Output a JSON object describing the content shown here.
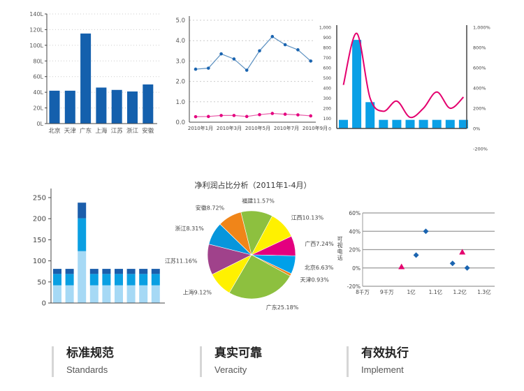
{
  "chart_data": [
    {
      "type": "bar",
      "categories": [
        "北京",
        "天津",
        "广东",
        "上海",
        "江苏",
        "浙江",
        "安徽"
      ],
      "values": [
        42,
        42,
        115,
        46,
        43,
        41,
        50
      ],
      "yticks": [
        "0L",
        "20L",
        "40L",
        "60L",
        "80L",
        "100L",
        "120L",
        "140L"
      ],
      "ylim": [
        0,
        140
      ],
      "grid": true,
      "color": "#1460ad"
    },
    {
      "type": "line",
      "xticks": [
        "2010年1月",
        "2010年3月",
        "2010年5月",
        "2010年7月",
        "2010年9月"
      ],
      "yticks": [
        "0.0",
        "1.0",
        "2.0",
        "3.0",
        "4.0",
        "5.0"
      ],
      "ylim": [
        0,
        5
      ],
      "grid": true,
      "series": [
        {
          "values": [
            2.6,
            2.65,
            3.35,
            3.1,
            2.55,
            3.5,
            4.2,
            3.8,
            3.55,
            3.0
          ],
          "color": "#1a64b0"
        },
        {
          "values": [
            0.27,
            0.28,
            0.33,
            0.33,
            0.28,
            0.37,
            0.43,
            0.39,
            0.36,
            0.31
          ],
          "color": "#e4007f"
        }
      ]
    },
    {
      "type": "bar+line",
      "bars": [
        85,
        875,
        260,
        85,
        85,
        85,
        85,
        85,
        85,
        85
      ],
      "bar_color": "#0aa0e6",
      "line": [
        430,
        940,
        300,
        170,
        270,
        110,
        200,
        360,
        200,
        310
      ],
      "line_color": "#e4006e",
      "yticks_left": [
        "0",
        "100",
        "200",
        "300",
        "400",
        "500",
        "600",
        "700",
        "800",
        "900",
        "1,000"
      ],
      "ylim_left": [
        0,
        1000
      ],
      "yticks_right": [
        "-200%",
        "0%",
        "200%",
        "400%",
        "600%",
        "800%",
        "1,000%"
      ],
      "ylim_right": [
        -200,
        1000
      ]
    },
    {
      "type": "stacked-bar",
      "series": [
        {
          "values": [
            42,
            42,
            123,
            42,
            42,
            42,
            42,
            42,
            42
          ],
          "color": "#a6d9f5"
        },
        {
          "values": [
            27,
            27,
            78,
            27,
            27,
            27,
            27,
            27,
            27
          ],
          "color": "#0a9fe2"
        },
        {
          "values": [
            12,
            12,
            37,
            12,
            12,
            12,
            12,
            12,
            12
          ],
          "color": "#1b5eab"
        }
      ],
      "yticks": [
        "0",
        "50",
        "100",
        "150",
        "200",
        "250"
      ],
      "ylim": [
        0,
        250
      ]
    },
    {
      "type": "pie",
      "title": "净利润占比分析（2011年1-4月）",
      "slices": [
        {
          "label": "福建11.57%",
          "value": 11.57,
          "color": "#8dc03f"
        },
        {
          "label": "江西10.13%",
          "value": 10.13,
          "color": "#fff100"
        },
        {
          "label": "广西7.24%",
          "value": 7.24,
          "color": "#e4007f"
        },
        {
          "label": "北京6.63%",
          "value": 6.63,
          "color": "#00a0e9"
        },
        {
          "label": "天津0.93%",
          "value": 0.93,
          "color": "#f08519"
        },
        {
          "label": "广东25.18%",
          "value": 25.18,
          "color": "#8dc03f"
        },
        {
          "label": "上海9.12%",
          "value": 9.12,
          "color": "#fff100"
        },
        {
          "label": "江苏11.16%",
          "value": 11.16,
          "color": "#a0428b"
        },
        {
          "label": "浙江8.31%",
          "value": 8.31,
          "color": "#0796dc"
        },
        {
          "label": "安徽8.72%",
          "value": 8.72,
          "color": "#f08519"
        }
      ]
    },
    {
      "type": "scatter",
      "ylabel": "可视电话",
      "xticks": [
        "8千万",
        "9千万",
        "1亿",
        "1.1亿",
        "1.2亿",
        "1.3亿"
      ],
      "xlim": [
        0.8,
        1.3
      ],
      "yticks": [
        "-20%",
        "0%",
        "20%",
        "40%",
        "60%"
      ],
      "ylim": [
        -20,
        60
      ],
      "series": [
        {
          "marker": "diamond",
          "color": "#1a64b0",
          "points": [
            [
              1.02,
              14
            ],
            [
              1.06,
              40
            ],
            [
              1.17,
              5
            ],
            [
              1.23,
              0
            ]
          ]
        },
        {
          "marker": "triangle",
          "color": "#e4006e",
          "points": [
            [
              0.96,
              1
            ],
            [
              1.21,
              17
            ]
          ]
        }
      ]
    }
  ],
  "features": [
    {
      "title": "标准规范",
      "subtitle": "Standards"
    },
    {
      "title": "真实可靠",
      "subtitle": "Veracity"
    },
    {
      "title": "有效执行",
      "subtitle": "Implement"
    }
  ]
}
